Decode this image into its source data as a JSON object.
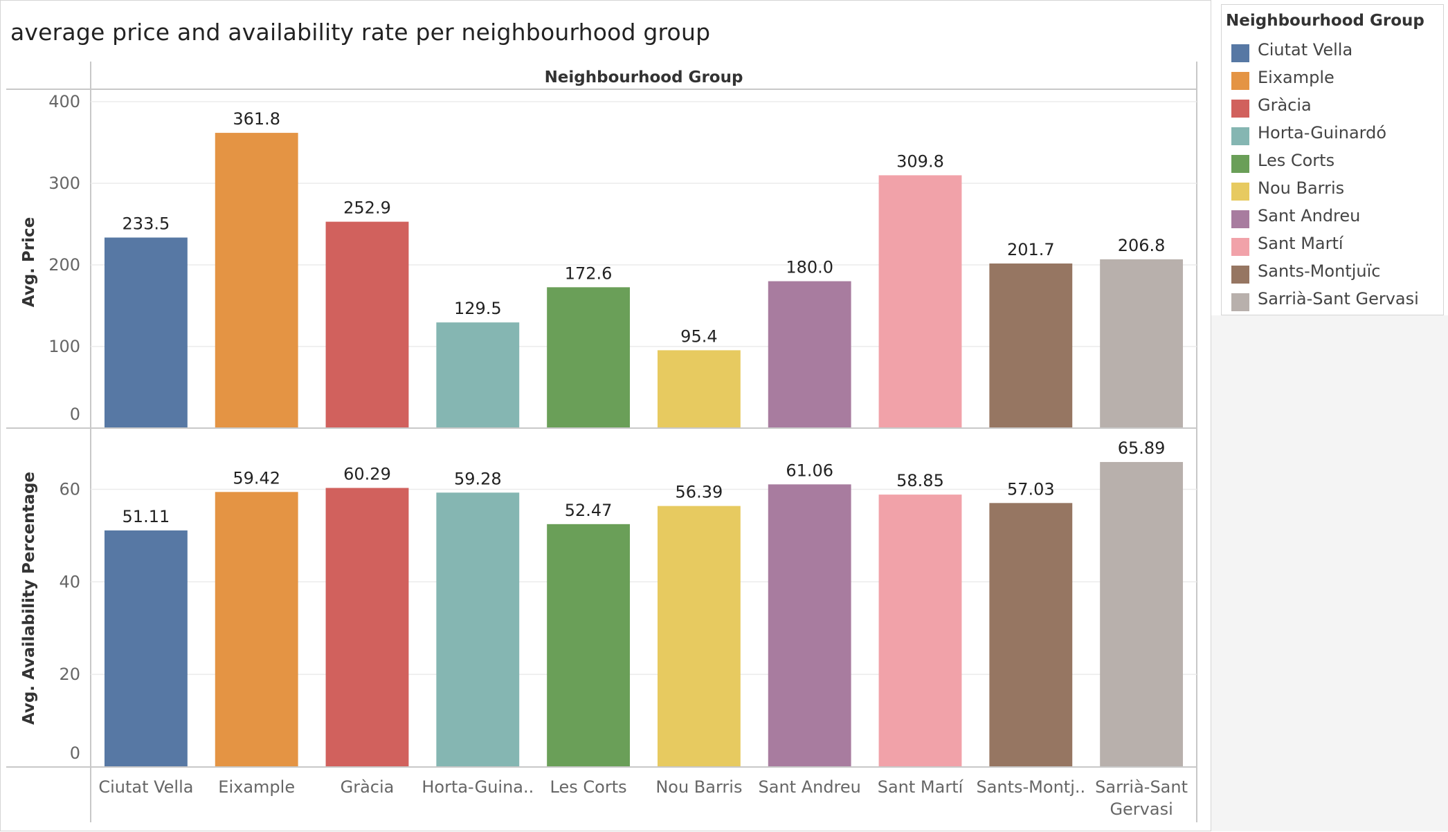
{
  "title": "average price  and availability rate  per neighbourhood group",
  "legend": {
    "title": "Neighbourhood Group",
    "items": [
      {
        "label": "Ciutat Vella",
        "color": "#5778a4"
      },
      {
        "label": "Eixample",
        "color": "#e49444"
      },
      {
        "label": "Gràcia",
        "color": "#d1615d"
      },
      {
        "label": "Horta-Guinardó",
        "color": "#85b6b2"
      },
      {
        "label": "Les Corts",
        "color": "#6a9f58"
      },
      {
        "label": "Nou Barris",
        "color": "#e7ca60"
      },
      {
        "label": "Sant Andreu",
        "color": "#a87c9f"
      },
      {
        "label": "Sant Martí",
        "color": "#f1a2a9"
      },
      {
        "label": "Sants-Montjuïc",
        "color": "#967662"
      },
      {
        "label": "Sarrià-Sant Gervasi",
        "color": "#b8b0ac"
      }
    ]
  },
  "chart_data": {
    "type": "bar",
    "column_header": "Neighbourhood Group",
    "categories": [
      "Ciutat Vella",
      "Eixample",
      "Gràcia",
      "Horta-Guinardó",
      "Les Corts",
      "Nou Barris",
      "Sant Andreu",
      "Sant Martí",
      "Sants-Montjuïc",
      "Sarrià-Sant Gervasi"
    ],
    "category_tick_labels": [
      [
        "Ciutat Vella"
      ],
      [
        "Eixample"
      ],
      [
        "Gràcia"
      ],
      [
        "Horta-Guina.."
      ],
      [
        "Les Corts"
      ],
      [
        "Nou Barris"
      ],
      [
        "Sant Andreu"
      ],
      [
        "Sant Martí"
      ],
      [
        "Sants-Montj.."
      ],
      [
        "Sarrià-Sant",
        "Gervasi"
      ]
    ],
    "grid": true,
    "legend_position": "right",
    "panels": [
      {
        "ylabel": "Avg. Price",
        "ylim": [
          0,
          400
        ],
        "yticks": [
          0,
          100,
          200,
          300,
          400
        ],
        "values": [
          233.5,
          361.8,
          252.9,
          129.5,
          172.6,
          95.4,
          180.0,
          309.8,
          201.7,
          206.8
        ],
        "value_labels": [
          "233.5",
          "361.8",
          "252.9",
          "129.5",
          "172.6",
          "95.4",
          "180.0",
          "309.8",
          "201.7",
          "206.8"
        ]
      },
      {
        "ylabel": "Avg. Availability Percentage",
        "ylim": [
          0,
          70
        ],
        "yticks": [
          0,
          20,
          40,
          60
        ],
        "values": [
          51.11,
          59.42,
          60.29,
          59.28,
          52.47,
          56.39,
          61.06,
          58.85,
          57.03,
          65.89
        ],
        "value_labels": [
          "51.11",
          "59.42",
          "60.29",
          "59.28",
          "52.47",
          "56.39",
          "61.06",
          "58.85",
          "57.03",
          "65.89"
        ]
      }
    ]
  }
}
